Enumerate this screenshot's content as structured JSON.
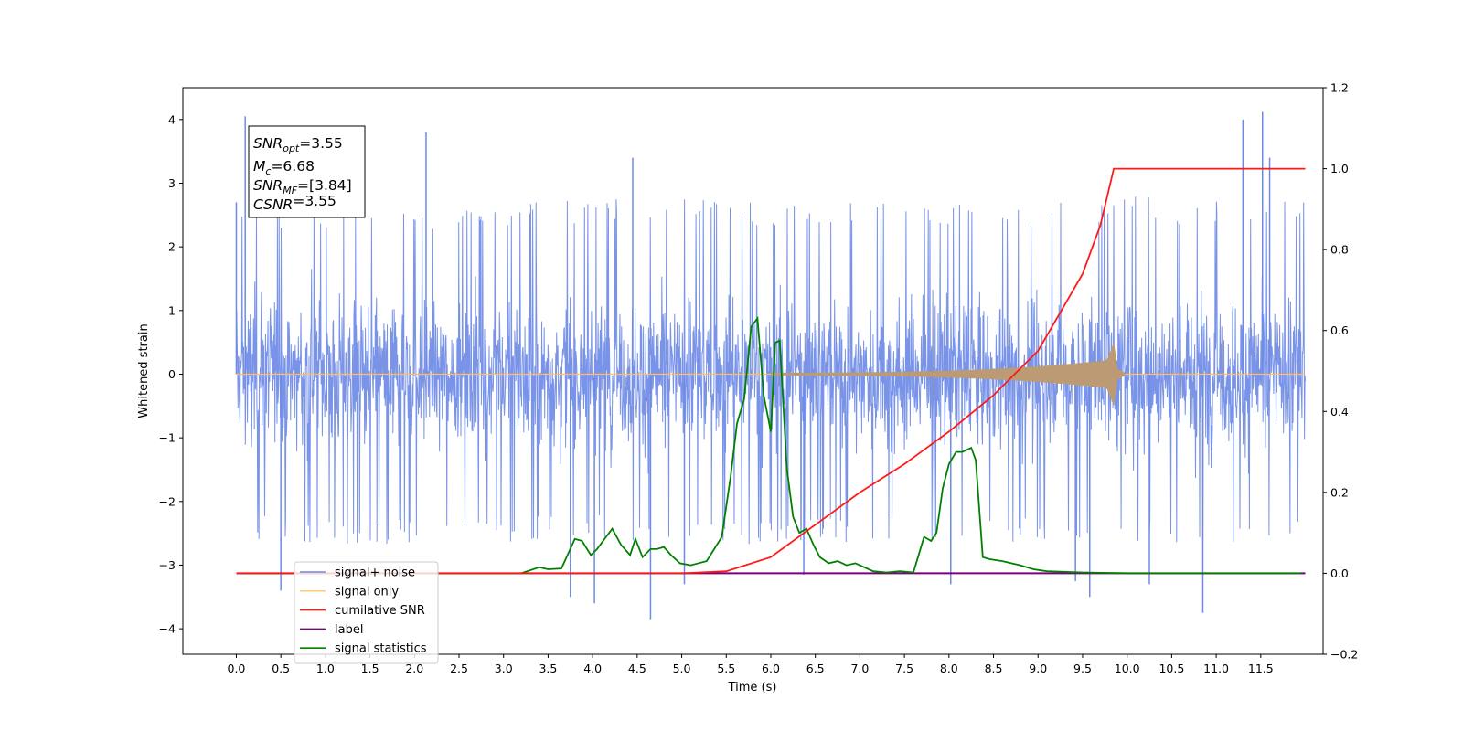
{
  "chart_data": {
    "type": "line",
    "xlabel": "Time (s)",
    "ylabel": "Whitened strain",
    "xlim": [
      -0.6,
      12.2
    ],
    "ylim": [
      -4.4,
      4.5
    ],
    "y2lim": [
      -0.2,
      1.2
    ],
    "xticks": [
      0.0,
      0.5,
      1.0,
      1.5,
      2.0,
      2.5,
      3.0,
      3.5,
      4.0,
      4.5,
      5.0,
      5.5,
      6.0,
      6.5,
      7.0,
      7.5,
      8.0,
      8.5,
      9.0,
      9.5,
      10.0,
      10.5,
      11.0,
      11.5
    ],
    "xtick_labels": [
      "0.0",
      "0.5",
      "1.0",
      "1.5",
      "2.0",
      "2.5",
      "3.0",
      "3.5",
      "4.0",
      "4.5",
      "5.0",
      "5.5",
      "6.0",
      "6.5",
      "7.0",
      "7.5",
      "8.0",
      "8.5",
      "9.0",
      "9.5",
      "10.0",
      "10.5",
      "11.0",
      "11.5"
    ],
    "yticks": [
      4,
      3,
      2,
      1,
      0,
      -1,
      -2,
      -3,
      -4
    ],
    "ytick_labels": [
      "4",
      "3",
      "2",
      "1",
      "0",
      "−1",
      "−2",
      "−3",
      "−4"
    ],
    "y2ticks": [
      1.2,
      1.0,
      0.8,
      0.6,
      0.4,
      0.2,
      0.0,
      -0.2
    ],
    "y2tick_labels": [
      "1.2",
      "1.0",
      "0.8",
      "0.6",
      "0.4",
      "0.2",
      "0.0",
      "−0.2"
    ],
    "grid": false,
    "legend_position": "lower-left",
    "annotation": {
      "lines": [
        {
          "sym": "SNR",
          "sub": "opt",
          "val": "=3.55"
        },
        {
          "sym": "M",
          "sub": "c",
          "val": "=6.68"
        },
        {
          "sym": "SNR",
          "sub": "MF",
          "val": "=[3.84]"
        },
        {
          "sym": "CSNR",
          "sub": "",
          "val": "=3.55"
        }
      ]
    },
    "series": [
      {
        "name": "signal+ noise",
        "axis": "left",
        "color": "#6d8ae6",
        "kind": "noise",
        "x_range": [
          0.0,
          12.0
        ],
        "envelope": {
          "x": [
            0,
            2,
            4,
            6,
            8,
            10,
            12
          ],
          "upper": [
            2.7,
            2.6,
            2.8,
            2.7,
            2.7,
            2.8,
            2.7
          ],
          "lower": [
            -2.6,
            -2.7,
            -2.6,
            -2.7,
            -2.6,
            -2.7,
            -2.6
          ]
        },
        "spikes": [
          {
            "x": 0.1,
            "y": 4.05
          },
          {
            "x": 2.13,
            "y": 3.8
          },
          {
            "x": 4.45,
            "y": 3.4
          },
          {
            "x": 11.3,
            "y": 4.0
          },
          {
            "x": 11.52,
            "y": 4.12
          },
          {
            "x": 11.6,
            "y": 3.4
          },
          {
            "x": 0.0,
            "y": 2.7
          },
          {
            "x": 0.5,
            "y": -3.4
          },
          {
            "x": 3.75,
            "y": -3.5
          },
          {
            "x": 4.02,
            "y": -3.6
          },
          {
            "x": 4.65,
            "y": -3.85
          },
          {
            "x": 5.03,
            "y": -3.3
          },
          {
            "x": 6.37,
            "y": -3.15
          },
          {
            "x": 8.02,
            "y": -3.3
          },
          {
            "x": 9.42,
            "y": -3.25
          },
          {
            "x": 9.58,
            "y": -3.5
          },
          {
            "x": 10.25,
            "y": -3.3
          },
          {
            "x": 10.85,
            "y": -3.75
          }
        ]
      },
      {
        "name": "signal only",
        "axis": "left",
        "color": "#ffbf60",
        "kind": "chirp",
        "x_range": [
          0.0,
          12.0
        ],
        "chirp_start": 6.0,
        "merger": 9.85,
        "peak_amplitude": 0.5,
        "fill_color": "#bc9a73"
      },
      {
        "name": "cumilative SNR",
        "axis": "right",
        "color": "#ff1a1a",
        "x": [
          0.0,
          5.0,
          5.5,
          6.0,
          6.5,
          7.0,
          7.5,
          8.0,
          8.5,
          9.0,
          9.5,
          9.7,
          9.85,
          10.0,
          11.0,
          12.0
        ],
        "values": [
          0.0,
          0.0,
          0.005,
          0.04,
          0.12,
          0.2,
          0.27,
          0.35,
          0.44,
          0.55,
          0.74,
          0.86,
          1.0,
          1.0,
          1.0,
          1.0
        ]
      },
      {
        "name": "label",
        "axis": "right",
        "color": "#7b007b",
        "x": [
          0.0,
          12.0
        ],
        "values": [
          0.0,
          0.0
        ]
      },
      {
        "name": "signal statistics",
        "axis": "right",
        "color": "#008000",
        "x": [
          0.0,
          3.2,
          3.4,
          3.5,
          3.65,
          3.8,
          3.88,
          3.98,
          4.05,
          4.15,
          4.22,
          4.32,
          4.42,
          4.48,
          4.56,
          4.65,
          4.72,
          4.8,
          4.88,
          4.98,
          5.1,
          5.28,
          5.45,
          5.55,
          5.62,
          5.7,
          5.78,
          5.85,
          5.92,
          6.0,
          6.05,
          6.1,
          6.18,
          6.25,
          6.32,
          6.4,
          6.48,
          6.55,
          6.65,
          6.75,
          6.85,
          6.95,
          7.05,
          7.15,
          7.3,
          7.45,
          7.6,
          7.72,
          7.8,
          7.86,
          7.93,
          8.0,
          8.08,
          8.15,
          8.25,
          8.3,
          8.38,
          8.45,
          8.6,
          8.8,
          8.95,
          9.1,
          9.5,
          10.0,
          11.0,
          11.95
        ],
        "values": [
          0.0,
          0.0,
          0.015,
          0.01,
          0.012,
          0.085,
          0.08,
          0.045,
          0.06,
          0.09,
          0.11,
          0.07,
          0.045,
          0.085,
          0.04,
          0.06,
          0.06,
          0.065,
          0.045,
          0.025,
          0.02,
          0.03,
          0.09,
          0.24,
          0.37,
          0.43,
          0.61,
          0.63,
          0.44,
          0.35,
          0.57,
          0.575,
          0.26,
          0.14,
          0.1,
          0.11,
          0.07,
          0.04,
          0.025,
          0.03,
          0.02,
          0.025,
          0.015,
          0.005,
          0.002,
          0.005,
          0.002,
          0.09,
          0.08,
          0.1,
          0.21,
          0.27,
          0.3,
          0.3,
          0.31,
          0.28,
          0.04,
          0.035,
          0.03,
          0.02,
          0.01,
          0.005,
          0.002,
          0.0,
          0.0,
          0.0
        ]
      }
    ]
  }
}
